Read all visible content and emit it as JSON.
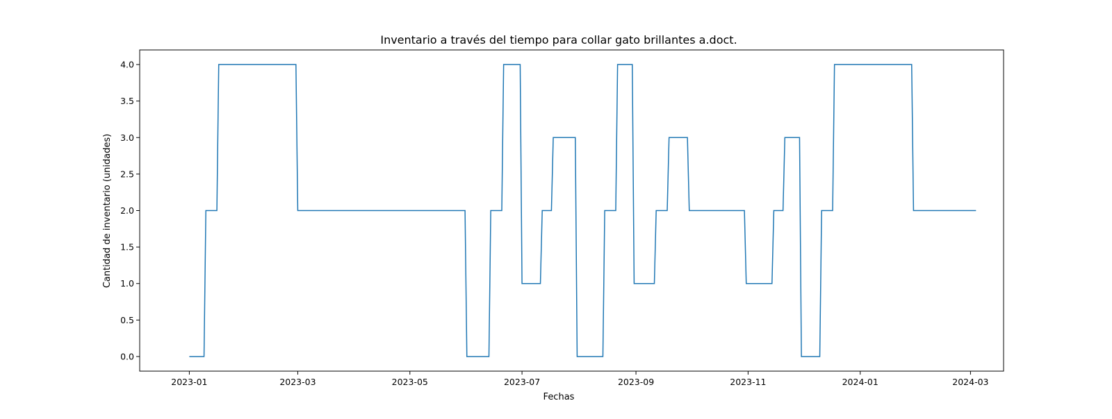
{
  "chart_data": {
    "type": "line",
    "title": "Inventario a través del tiempo para collar gato brillantes a.doct.",
    "xlabel": "Fechas",
    "ylabel": "Cantidad de inventario (unidades)",
    "x_ticks": [
      "2023-01",
      "2023-03",
      "2023-05",
      "2023-07",
      "2023-09",
      "2023-11",
      "2024-01",
      "2024-03"
    ],
    "y_ticks": [
      "0.0",
      "0.5",
      "1.0",
      "1.5",
      "2.0",
      "2.5",
      "3.0",
      "3.5",
      "4.0"
    ],
    "xlim": [
      "2022-12-05",
      "2024-03-19"
    ],
    "ylim": [
      -0.2,
      4.2
    ],
    "grid": false,
    "legend": "none",
    "colors": {
      "line": "#1f77b4",
      "axes": "#000000",
      "background": "#ffffff"
    },
    "series": [
      {
        "x": [
          "2023-01-01",
          "2023-01-09",
          "2023-01-10",
          "2023-01-16",
          "2023-01-17",
          "2023-02-28",
          "2023-03-01",
          "2023-05-31",
          "2023-06-01",
          "2023-06-13",
          "2023-06-14",
          "2023-06-20",
          "2023-06-21",
          "2023-06-30",
          "2023-07-01",
          "2023-07-11",
          "2023-07-12",
          "2023-07-17",
          "2023-07-18",
          "2023-07-30",
          "2023-07-31",
          "2023-08-14",
          "2023-08-15",
          "2023-08-21",
          "2023-08-22",
          "2023-08-30",
          "2023-08-31",
          "2023-09-11",
          "2023-09-12",
          "2023-09-18",
          "2023-09-19",
          "2023-09-29",
          "2023-09-30",
          "2023-10-30",
          "2023-10-31",
          "2023-11-14",
          "2023-11-15",
          "2023-11-20",
          "2023-11-21",
          "2023-11-29",
          "2023-11-30",
          "2023-12-10",
          "2023-12-11",
          "2023-12-17",
          "2023-12-18",
          "2024-01-29",
          "2024-01-30",
          "2024-03-04"
        ],
        "y": [
          0,
          0,
          2,
          2,
          4,
          4,
          2,
          2,
          0,
          0,
          2,
          2,
          4,
          4,
          1,
          1,
          2,
          2,
          3,
          3,
          0,
          0,
          2,
          2,
          4,
          4,
          1,
          1,
          2,
          2,
          3,
          3,
          2,
          2,
          1,
          1,
          2,
          2,
          3,
          3,
          0,
          0,
          2,
          2,
          4,
          4,
          2,
          2
        ]
      }
    ]
  }
}
